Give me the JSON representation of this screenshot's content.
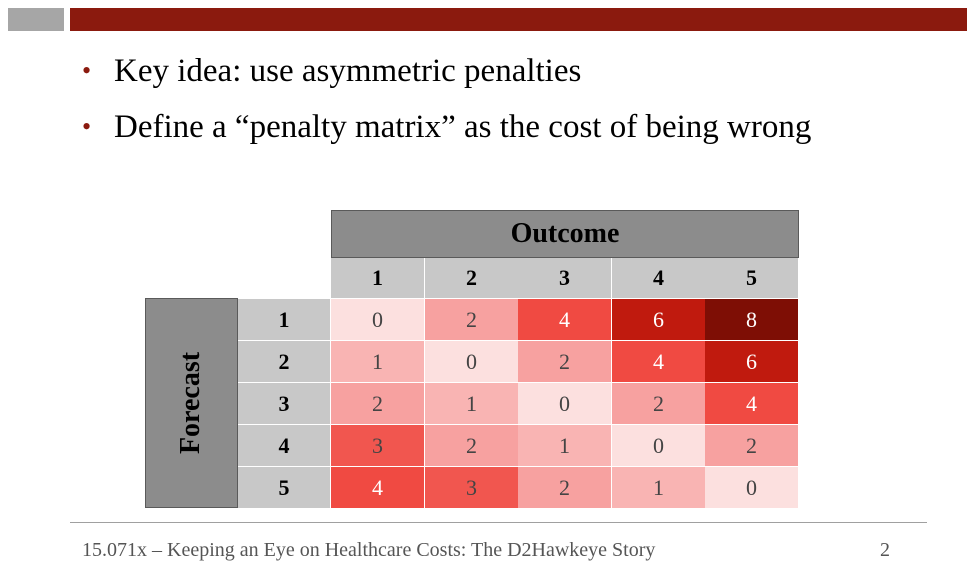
{
  "bullets": [
    "Key idea: use asymmetric penalties",
    "Define a “penalty matrix” as the cost of  being wrong"
  ],
  "matrix": {
    "outcome_label": "Outcome",
    "forecast_label": "Forecast",
    "outcome_indices": [
      "1",
      "2",
      "3",
      "4",
      "5"
    ],
    "forecast_indices": [
      "1",
      "2",
      "3",
      "4",
      "5"
    ],
    "values": [
      [
        0,
        2,
        4,
        6,
        8
      ],
      [
        1,
        0,
        2,
        4,
        6
      ],
      [
        2,
        1,
        0,
        2,
        4
      ],
      [
        3,
        2,
        1,
        0,
        2
      ],
      [
        4,
        3,
        2,
        1,
        0
      ]
    ],
    "heat_colors": {
      "0": "#fce0df",
      "1": "#f9b4b3",
      "2": "#f7a1a0",
      "3": "#f1564f",
      "4": "#f04a42",
      "6": "#c01a0e",
      "8": "#7e0e05"
    }
  },
  "footer": {
    "text": "15.071x – Keeping an Eye on Healthcare Costs: The D2Hawkeye Story",
    "page_number": "2"
  },
  "colors": {
    "accent": "#8b1a0e",
    "header_gray": "#8c8c8c",
    "index_gray": "#c8c8c8"
  }
}
